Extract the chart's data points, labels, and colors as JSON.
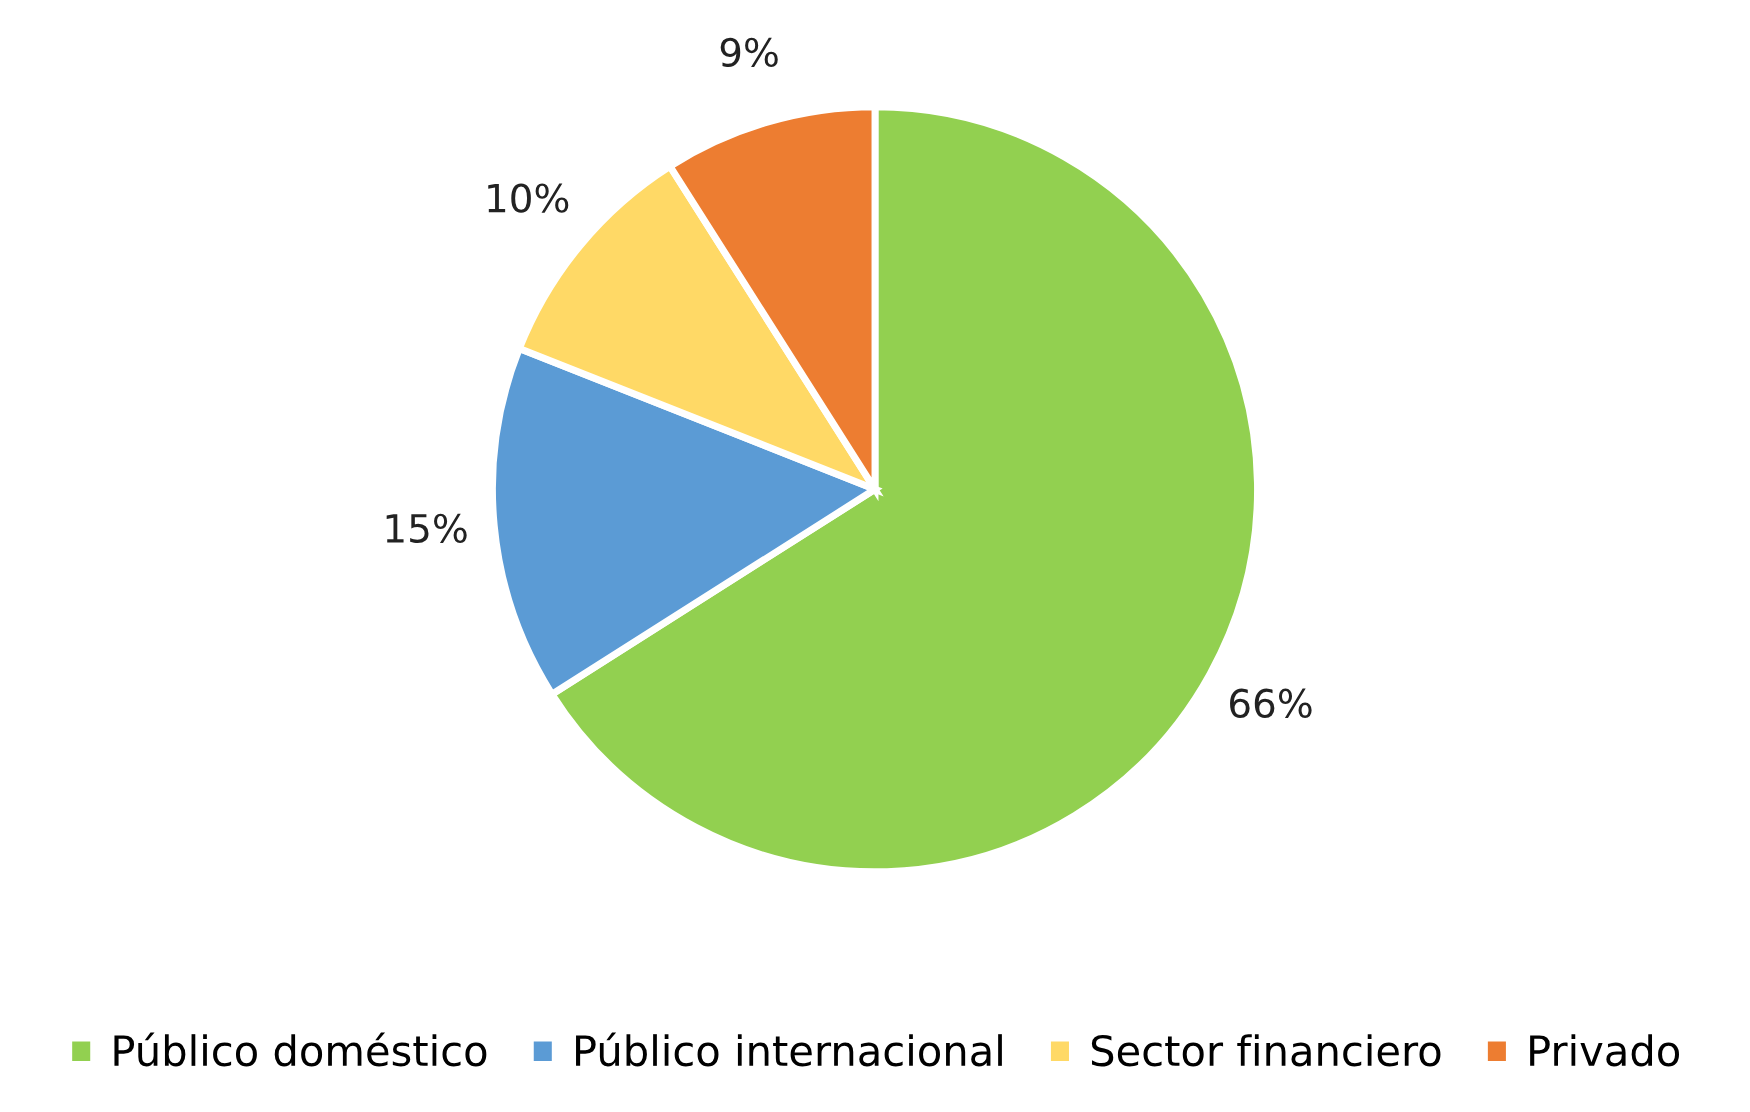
{
  "chart_data": {
    "type": "pie",
    "categories": [
      "Público doméstico",
      "Público internacional",
      "Sector financiero",
      "Privado"
    ],
    "values": [
      66,
      15,
      10,
      9
    ],
    "colors": [
      "#92d050",
      "#5b9bd5",
      "#ffd966",
      "#ed7d31"
    ],
    "value_labels": [
      "66%",
      "15%",
      "10%",
      "9%"
    ],
    "legend": "bottom"
  }
}
